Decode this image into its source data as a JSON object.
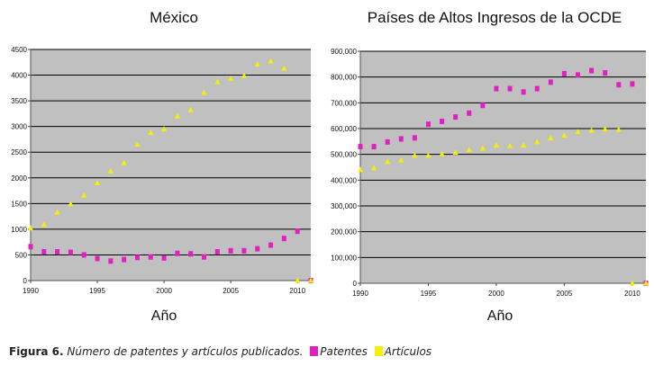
{
  "caption": {
    "figure": "Figura 6.",
    "text": "Número de patentes  y artículos publicados.",
    "legend": [
      {
        "label": "Patentes",
        "color": "#e020c0"
      },
      {
        "label": "Artículos",
        "color": "#f4f000"
      }
    ]
  },
  "chart_data": [
    {
      "type": "scatter",
      "title": "México",
      "xlabel": "Año",
      "ylabel": "",
      "xlim": [
        1990,
        2011
      ],
      "ylim": [
        0,
        4500
      ],
      "yticks": [
        0,
        500,
        1000,
        1500,
        2000,
        2500,
        3000,
        3500,
        4000,
        4500
      ],
      "ytick_labels": [
        "0",
        "500",
        "1000",
        "1500",
        "2000",
        "2500",
        "3000",
        "3500",
        "4000",
        "4500"
      ],
      "xticks": [
        1990,
        1995,
        2000,
        2005,
        2010
      ],
      "xtick_labels": [
        "1990",
        "1995",
        "2000",
        "2005",
        "2010"
      ],
      "grid": true,
      "plot_background": "#c0c0c0",
      "series": [
        {
          "name": "Patentes",
          "marker": "square",
          "color": "#e020c0",
          "x": [
            1990,
            1991,
            1992,
            1993,
            1994,
            1995,
            1996,
            1997,
            1998,
            1999,
            2000,
            2001,
            2002,
            2003,
            2004,
            2005,
            2006,
            2007,
            2008,
            2009,
            2010,
            2011
          ],
          "y": [
            660,
            560,
            560,
            550,
            500,
            430,
            380,
            410,
            450,
            460,
            440,
            530,
            520,
            460,
            560,
            580,
            580,
            620,
            690,
            820,
            960,
            0
          ]
        },
        {
          "name": "Artículos",
          "marker": "triangle",
          "color": "#f4f000",
          "x": [
            1990,
            1991,
            1992,
            1993,
            1994,
            1995,
            1996,
            1997,
            1998,
            1999,
            2000,
            2001,
            2002,
            2003,
            2004,
            2005,
            2006,
            2007,
            2008,
            2009,
            2010,
            2011
          ],
          "y": [
            1020,
            1090,
            1330,
            1490,
            1660,
            1900,
            2130,
            2290,
            2650,
            2880,
            2950,
            3200,
            3320,
            3660,
            3870,
            3930,
            3990,
            4210,
            4270,
            4130,
            0,
            0
          ]
        }
      ]
    },
    {
      "type": "scatter",
      "title": "Países de Altos Ingresos de la OCDE",
      "xlabel": "Año",
      "ylabel": "",
      "xlim": [
        1990,
        2011
      ],
      "ylim": [
        0,
        900000
      ],
      "yticks": [
        0,
        100000,
        200000,
        300000,
        400000,
        500000,
        600000,
        700000,
        800000,
        900000
      ],
      "ytick_labels": [
        "0",
        "100,000",
        "200,000",
        "300,000",
        "400,000",
        "500,000",
        "600,000",
        "700,000",
        "800,000",
        "900,000"
      ],
      "xticks": [
        1990,
        1995,
        2000,
        2005,
        2010
      ],
      "xtick_labels": [
        "1990",
        "1995",
        "2000",
        "2005",
        "2010"
      ],
      "grid": true,
      "plot_background": "#c0c0c0",
      "series": [
        {
          "name": "Patentes",
          "marker": "square",
          "color": "#e020c0",
          "x": [
            1990,
            1991,
            1992,
            1993,
            1994,
            1995,
            1996,
            1997,
            1998,
            1999,
            2000,
            2001,
            2002,
            2003,
            2004,
            2005,
            2006,
            2007,
            2008,
            2009,
            2010,
            2011
          ],
          "y": [
            530000,
            530000,
            548000,
            560000,
            564000,
            617000,
            628000,
            645000,
            660000,
            690000,
            755000,
            755000,
            742000,
            755000,
            780000,
            813000,
            808000,
            825000,
            816000,
            770000,
            773000,
            0
          ]
        },
        {
          "name": "Artículos",
          "marker": "triangle",
          "color": "#f4f000",
          "x": [
            1990,
            1991,
            1992,
            1993,
            1994,
            1995,
            1996,
            1997,
            1998,
            1999,
            2000,
            2001,
            2002,
            2003,
            2004,
            2005,
            2006,
            2007,
            2008,
            2009,
            2010,
            2011
          ],
          "y": [
            440000,
            447000,
            472000,
            477000,
            496000,
            496000,
            502000,
            507000,
            518000,
            523000,
            535000,
            533000,
            535000,
            548000,
            563000,
            573000,
            588000,
            593000,
            598000,
            596000,
            0,
            0
          ]
        }
      ]
    }
  ]
}
